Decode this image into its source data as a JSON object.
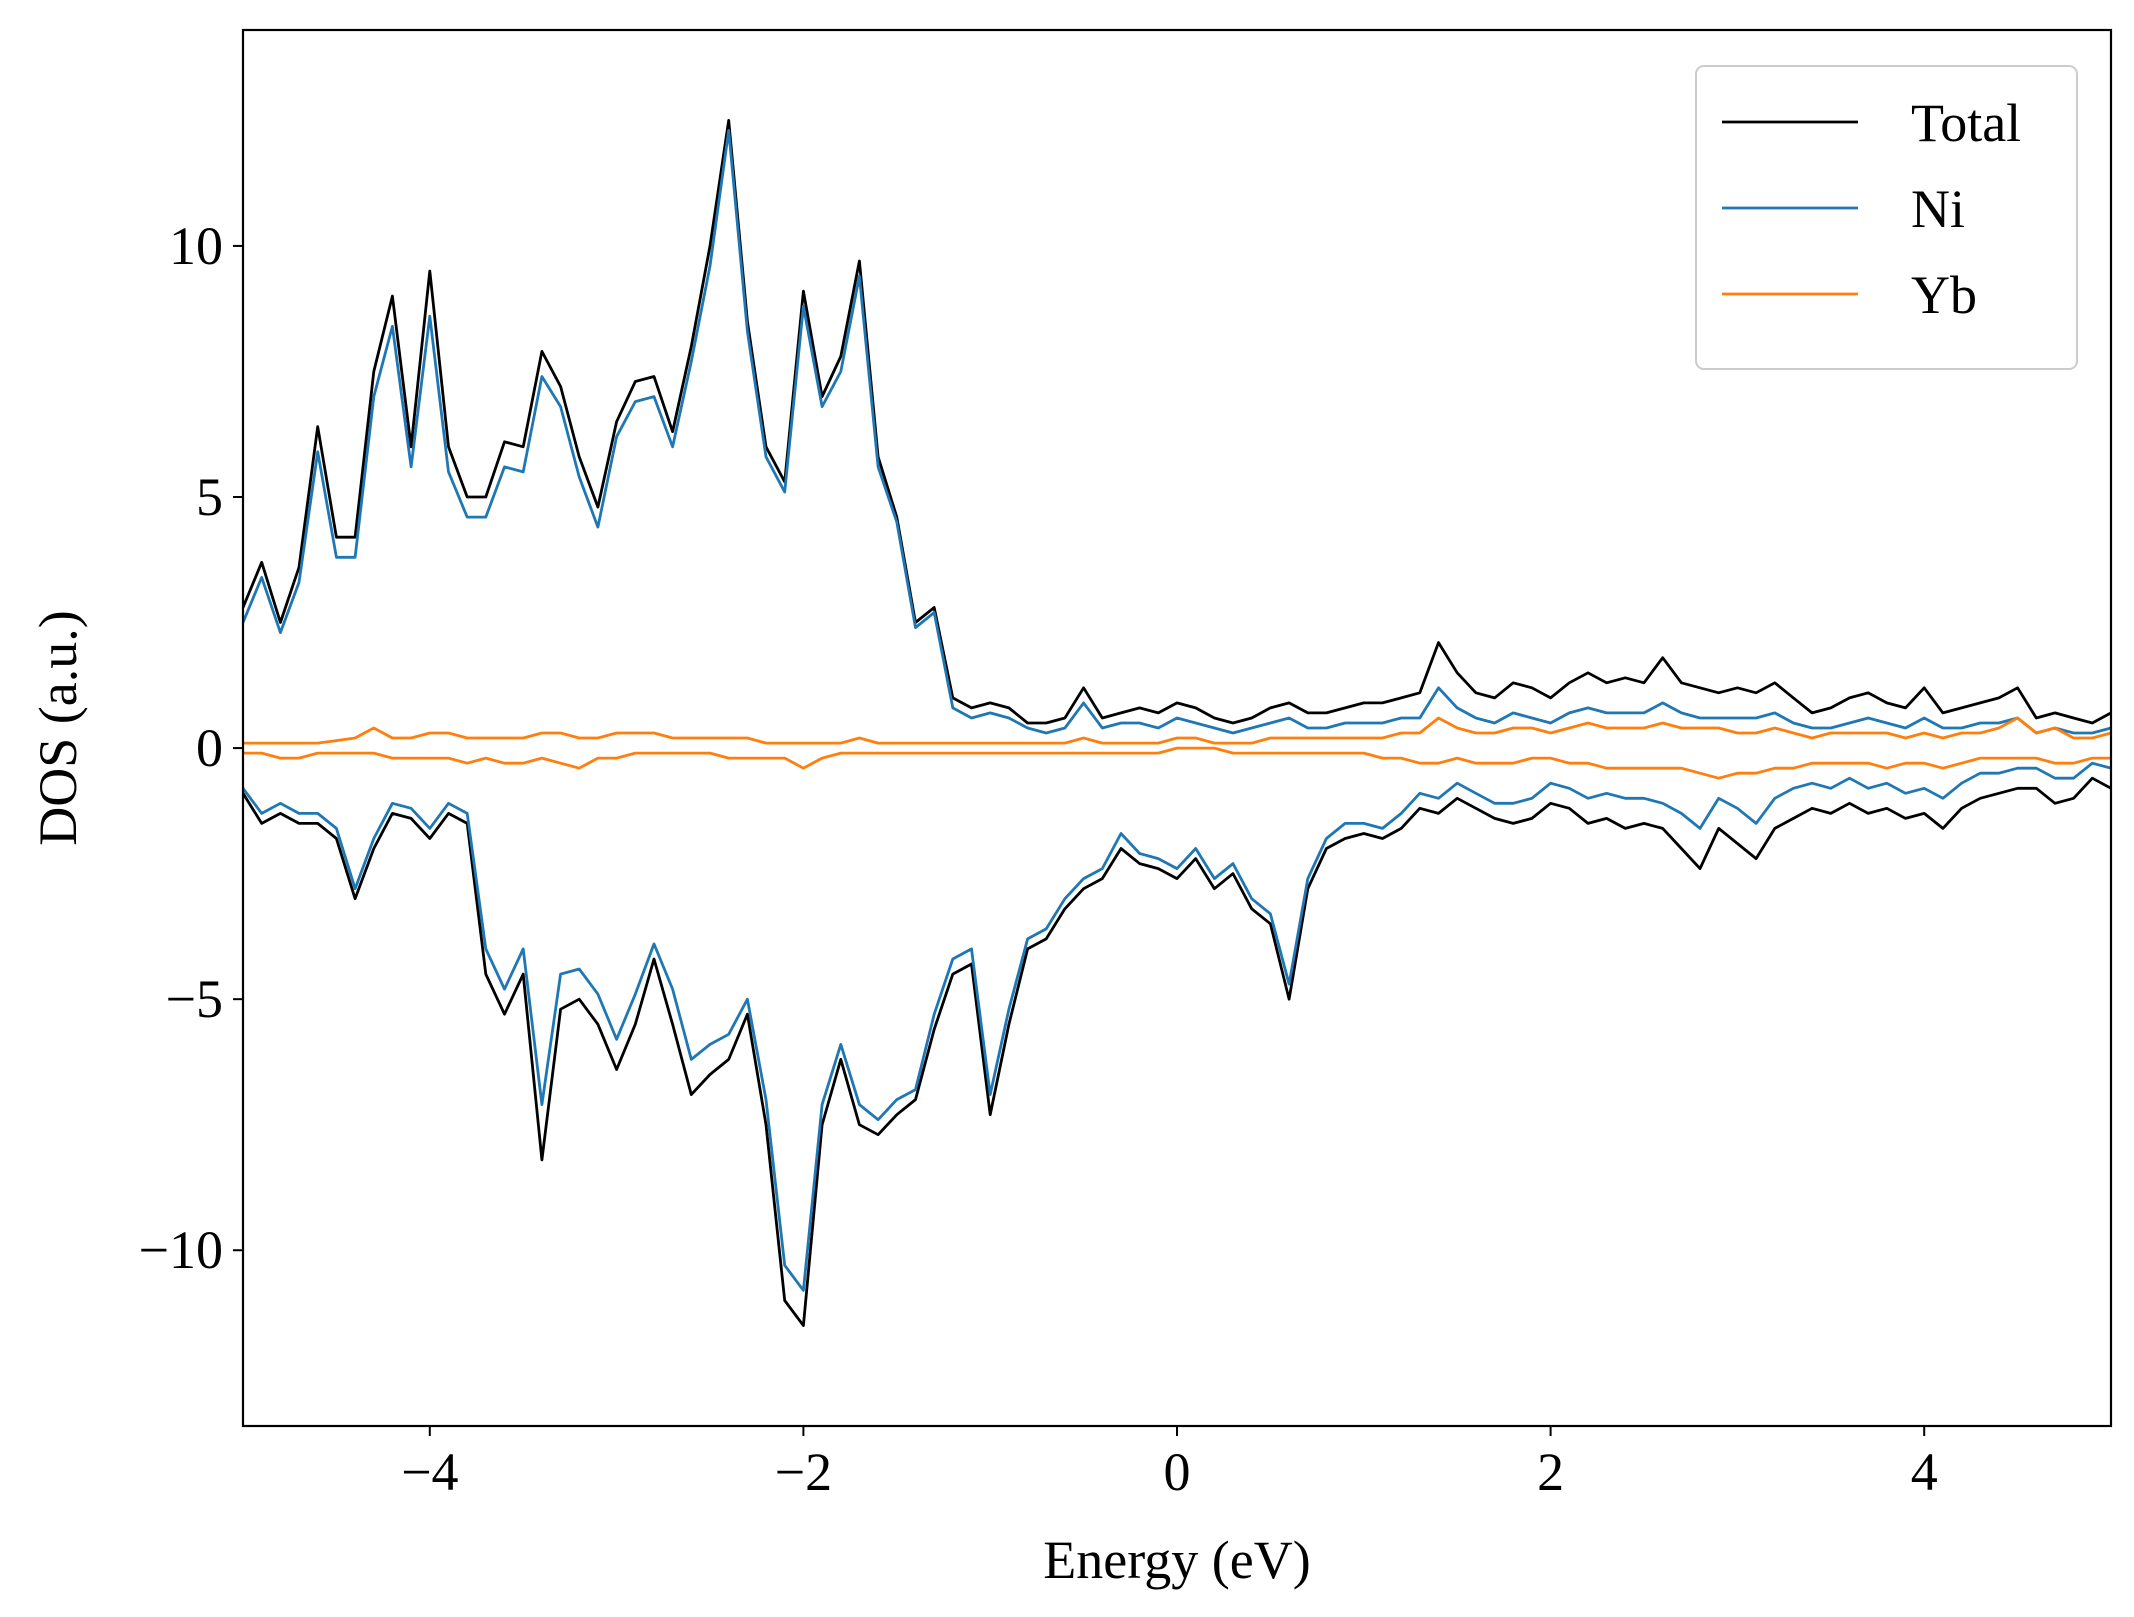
{
  "chart_data": {
    "type": "line",
    "xlabel": "Energy (eV)",
    "ylabel": "DOS (a.u.)",
    "xlim": [
      -5,
      5
    ],
    "ylim": [
      -13.5,
      14.3
    ],
    "xticks": [
      {
        "value": -4,
        "label": "−4"
      },
      {
        "value": -2,
        "label": "−2"
      },
      0,
      2,
      4
    ],
    "yticks": [
      {
        "value": -10,
        "label": "−10"
      },
      {
        "value": -5,
        "label": "−5"
      },
      0,
      5,
      10
    ],
    "legend": "upper right",
    "x": [
      -5.0,
      -4.9,
      -4.8,
      -4.7,
      -4.6,
      -4.5,
      -4.4,
      -4.3,
      -4.2,
      -4.1,
      -4.0,
      -3.9,
      -3.8,
      -3.7,
      -3.6,
      -3.5,
      -3.4,
      -3.3,
      -3.2,
      -3.1,
      -3.0,
      -2.9,
      -2.8,
      -2.7,
      -2.6,
      -2.5,
      -2.4,
      -2.3,
      -2.2,
      -2.1,
      -2.0,
      -1.9,
      -1.8,
      -1.7,
      -1.6,
      -1.5,
      -1.4,
      -1.3,
      -1.2,
      -1.1,
      -1.0,
      -0.9,
      -0.8,
      -0.7,
      -0.6,
      -0.5,
      -0.4,
      -0.3,
      -0.2,
      -0.1,
      0.0,
      0.1,
      0.2,
      0.3,
      0.4,
      0.5,
      0.6,
      0.7,
      0.8,
      0.9,
      1.0,
      1.1,
      1.2,
      1.3,
      1.4,
      1.5,
      1.6,
      1.7,
      1.8,
      1.9,
      2.0,
      2.1,
      2.2,
      2.3,
      2.4,
      2.5,
      2.6,
      2.7,
      2.8,
      2.9,
      3.0,
      3.1,
      3.2,
      3.3,
      3.4,
      3.5,
      3.6,
      3.7,
      3.8,
      3.9,
      4.0,
      4.1,
      4.2,
      4.3,
      4.4,
      4.5,
      4.6,
      4.7,
      4.8,
      4.9,
      5.0
    ],
    "series": [
      {
        "name": "Total",
        "color": "#000000",
        "values": [
          2.8,
          3.7,
          2.5,
          3.6,
          6.4,
          4.2,
          4.2,
          7.5,
          9.0,
          6.0,
          9.5,
          6.0,
          5.0,
          5.0,
          6.1,
          6.0,
          7.9,
          7.2,
          5.8,
          4.8,
          6.5,
          7.3,
          7.4,
          6.3,
          8.0,
          10.0,
          12.5,
          8.5,
          6.0,
          5.3,
          9.1,
          7.0,
          7.8,
          9.7,
          5.8,
          4.6,
          2.5,
          2.8,
          1.0,
          0.8,
          0.9,
          0.8,
          0.5,
          0.5,
          0.6,
          1.2,
          0.6,
          0.7,
          0.8,
          0.7,
          0.9,
          0.8,
          0.6,
          0.5,
          0.6,
          0.8,
          0.9,
          0.7,
          0.7,
          0.8,
          0.9,
          0.9,
          1.0,
          1.1,
          2.1,
          1.5,
          1.1,
          1.0,
          1.3,
          1.2,
          1.0,
          1.3,
          1.5,
          1.3,
          1.4,
          1.3,
          1.8,
          1.3,
          1.2,
          1.1,
          1.2,
          1.1,
          1.3,
          1.0,
          0.7,
          0.8,
          1.0,
          1.1,
          0.9,
          0.8,
          1.2,
          0.7,
          0.8,
          0.9,
          1.0,
          1.2,
          0.6,
          0.7,
          0.6,
          0.5,
          0.7
        ],
        "down": [
          -0.9,
          -1.5,
          -1.3,
          -1.5,
          -1.5,
          -1.8,
          -3.0,
          -2.0,
          -1.3,
          -1.4,
          -1.8,
          -1.3,
          -1.5,
          -4.5,
          -5.3,
          -4.5,
          -8.2,
          -5.2,
          -5.0,
          -5.5,
          -6.4,
          -5.5,
          -4.2,
          -5.5,
          -6.9,
          -6.5,
          -6.2,
          -5.3,
          -7.5,
          -11.0,
          -11.5,
          -7.5,
          -6.2,
          -7.5,
          -7.7,
          -7.3,
          -7.0,
          -5.6,
          -4.5,
          -4.3,
          -7.3,
          -5.5,
          -4.0,
          -3.8,
          -3.2,
          -2.8,
          -2.6,
          -2.0,
          -2.3,
          -2.4,
          -2.6,
          -2.2,
          -2.8,
          -2.5,
          -3.2,
          -3.5,
          -5.0,
          -2.8,
          -2.0,
          -1.8,
          -1.7,
          -1.8,
          -1.6,
          -1.2,
          -1.3,
          -1.0,
          -1.2,
          -1.4,
          -1.5,
          -1.4,
          -1.1,
          -1.2,
          -1.5,
          -1.4,
          -1.6,
          -1.5,
          -1.6,
          -2.0,
          -2.4,
          -1.6,
          -1.9,
          -2.2,
          -1.6,
          -1.4,
          -1.2,
          -1.3,
          -1.1,
          -1.3,
          -1.2,
          -1.4,
          -1.3,
          -1.6,
          -1.2,
          -1.0,
          -0.9,
          -0.8,
          -0.8,
          -1.1,
          -1.0,
          -0.6,
          -0.8
        ]
      },
      {
        "name": "Ni",
        "color": "#1f77b4",
        "values": [
          2.5,
          3.4,
          2.3,
          3.3,
          5.9,
          3.8,
          3.8,
          7.0,
          8.4,
          5.6,
          8.6,
          5.5,
          4.6,
          4.6,
          5.6,
          5.5,
          7.4,
          6.8,
          5.4,
          4.4,
          6.2,
          6.9,
          7.0,
          6.0,
          7.7,
          9.6,
          12.3,
          8.3,
          5.8,
          5.1,
          8.8,
          6.8,
          7.5,
          9.4,
          5.6,
          4.5,
          2.4,
          2.7,
          0.8,
          0.6,
          0.7,
          0.6,
          0.4,
          0.3,
          0.4,
          0.9,
          0.4,
          0.5,
          0.5,
          0.4,
          0.6,
          0.5,
          0.4,
          0.3,
          0.4,
          0.5,
          0.6,
          0.4,
          0.4,
          0.5,
          0.5,
          0.5,
          0.6,
          0.6,
          1.2,
          0.8,
          0.6,
          0.5,
          0.7,
          0.6,
          0.5,
          0.7,
          0.8,
          0.7,
          0.7,
          0.7,
          0.9,
          0.7,
          0.6,
          0.6,
          0.6,
          0.6,
          0.7,
          0.5,
          0.4,
          0.4,
          0.5,
          0.6,
          0.5,
          0.4,
          0.6,
          0.4,
          0.4,
          0.5,
          0.5,
          0.6,
          0.3,
          0.4,
          0.3,
          0.3,
          0.4
        ],
        "down": [
          -0.8,
          -1.3,
          -1.1,
          -1.3,
          -1.3,
          -1.6,
          -2.8,
          -1.8,
          -1.1,
          -1.2,
          -1.6,
          -1.1,
          -1.3,
          -4.0,
          -4.8,
          -4.0,
          -7.1,
          -4.5,
          -4.4,
          -4.9,
          -5.8,
          -4.9,
          -3.9,
          -4.8,
          -6.2,
          -5.9,
          -5.7,
          -5.0,
          -7.0,
          -10.3,
          -10.8,
          -7.1,
          -5.9,
          -7.1,
          -7.4,
          -7.0,
          -6.8,
          -5.3,
          -4.2,
          -4.0,
          -6.9,
          -5.2,
          -3.8,
          -3.6,
          -3.0,
          -2.6,
          -2.4,
          -1.7,
          -2.1,
          -2.2,
          -2.4,
          -2.0,
          -2.6,
          -2.3,
          -3.0,
          -3.3,
          -4.7,
          -2.6,
          -1.8,
          -1.5,
          -1.5,
          -1.6,
          -1.3,
          -0.9,
          -1.0,
          -0.7,
          -0.9,
          -1.1,
          -1.1,
          -1.0,
          -0.7,
          -0.8,
          -1.0,
          -0.9,
          -1.0,
          -1.0,
          -1.1,
          -1.3,
          -1.6,
          -1.0,
          -1.2,
          -1.5,
          -1.0,
          -0.8,
          -0.7,
          -0.8,
          -0.6,
          -0.8,
          -0.7,
          -0.9,
          -0.8,
          -1.0,
          -0.7,
          -0.5,
          -0.5,
          -0.4,
          -0.4,
          -0.6,
          -0.6,
          -0.3,
          -0.4
        ]
      },
      {
        "name": "Yb",
        "color": "#ff7f0e",
        "values": [
          0.1,
          0.1,
          0.1,
          0.1,
          0.1,
          0.15,
          0.2,
          0.4,
          0.2,
          0.2,
          0.3,
          0.3,
          0.2,
          0.2,
          0.2,
          0.2,
          0.3,
          0.3,
          0.2,
          0.2,
          0.3,
          0.3,
          0.3,
          0.2,
          0.2,
          0.2,
          0.2,
          0.2,
          0.1,
          0.1,
          0.1,
          0.1,
          0.1,
          0.2,
          0.1,
          0.1,
          0.1,
          0.1,
          0.1,
          0.1,
          0.1,
          0.1,
          0.1,
          0.1,
          0.1,
          0.2,
          0.1,
          0.1,
          0.1,
          0.1,
          0.2,
          0.2,
          0.1,
          0.1,
          0.1,
          0.2,
          0.2,
          0.2,
          0.2,
          0.2,
          0.2,
          0.2,
          0.3,
          0.3,
          0.6,
          0.4,
          0.3,
          0.3,
          0.4,
          0.4,
          0.3,
          0.4,
          0.5,
          0.4,
          0.4,
          0.4,
          0.5,
          0.4,
          0.4,
          0.4,
          0.3,
          0.3,
          0.4,
          0.3,
          0.2,
          0.3,
          0.3,
          0.3,
          0.3,
          0.2,
          0.3,
          0.2,
          0.3,
          0.3,
          0.4,
          0.6,
          0.3,
          0.4,
          0.2,
          0.2,
          0.3
        ],
        "down": [
          -0.1,
          -0.1,
          -0.2,
          -0.2,
          -0.1,
          -0.1,
          -0.1,
          -0.1,
          -0.2,
          -0.2,
          -0.2,
          -0.2,
          -0.3,
          -0.2,
          -0.3,
          -0.3,
          -0.2,
          -0.3,
          -0.4,
          -0.2,
          -0.2,
          -0.1,
          -0.1,
          -0.1,
          -0.1,
          -0.1,
          -0.2,
          -0.2,
          -0.2,
          -0.2,
          -0.4,
          -0.2,
          -0.1,
          -0.1,
          -0.1,
          -0.1,
          -0.1,
          -0.1,
          -0.1,
          -0.1,
          -0.1,
          -0.1,
          -0.1,
          -0.1,
          -0.1,
          -0.1,
          -0.1,
          -0.1,
          -0.1,
          -0.1,
          0,
          0,
          0,
          -0.1,
          -0.1,
          -0.1,
          -0.1,
          -0.1,
          -0.1,
          -0.1,
          -0.1,
          -0.2,
          -0.2,
          -0.3,
          -0.3,
          -0.2,
          -0.3,
          -0.3,
          -0.3,
          -0.2,
          -0.2,
          -0.3,
          -0.3,
          -0.4,
          -0.4,
          -0.4,
          -0.4,
          -0.4,
          -0.5,
          -0.6,
          -0.5,
          -0.5,
          -0.4,
          -0.4,
          -0.3,
          -0.3,
          -0.3,
          -0.3,
          -0.4,
          -0.3,
          -0.3,
          -0.4,
          -0.3,
          -0.2,
          -0.2,
          -0.2,
          -0.2,
          -0.3,
          -0.3,
          -0.2,
          -0.2
        ]
      }
    ]
  }
}
